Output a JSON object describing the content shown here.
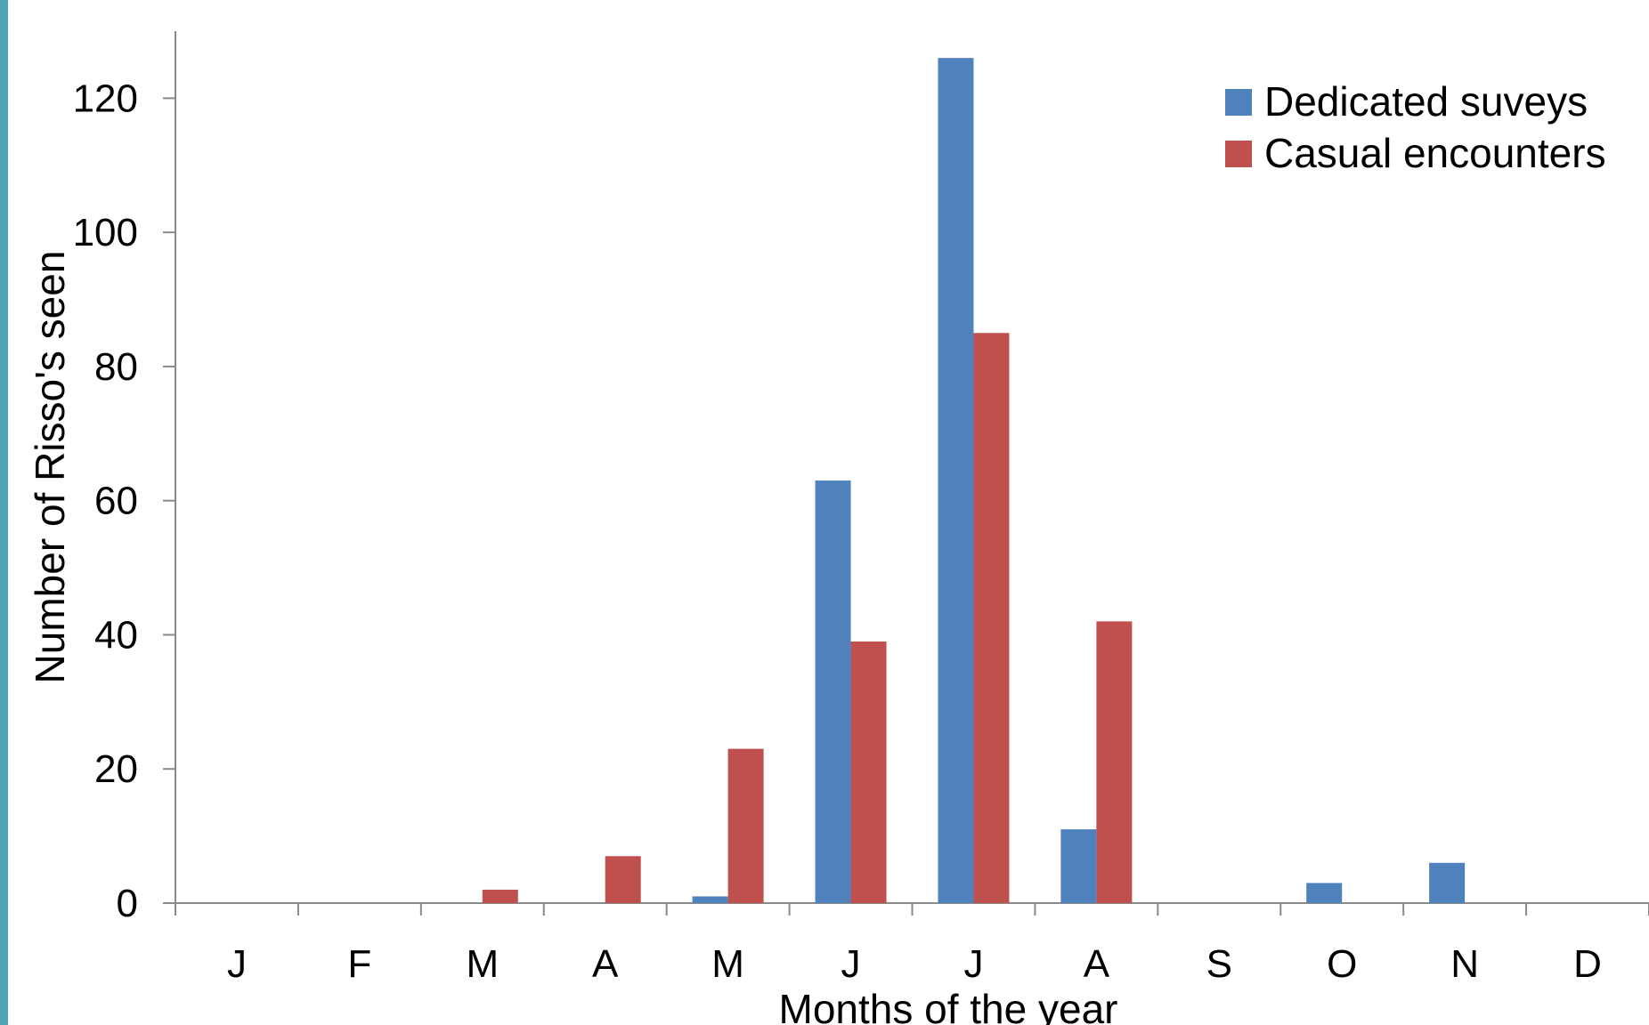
{
  "colors": {
    "page_background": "#ffffff",
    "frame_accent": "#4fa3b3",
    "axis_line": "#8a8a8a"
  },
  "chart_data": {
    "type": "bar",
    "title": "",
    "xlabel": "Months of the year",
    "ylabel": "Number of Risso's seen",
    "categories": [
      "J",
      "F",
      "M",
      "A",
      "M",
      "J",
      "J",
      "A",
      "S",
      "O",
      "N",
      "D"
    ],
    "ylim": [
      0,
      130
    ],
    "yticks": [
      0,
      20,
      40,
      60,
      80,
      100,
      120
    ],
    "grid": false,
    "legend_position": "top-right",
    "series": [
      {
        "name": "Dedicated suveys",
        "color": "#4f81bd",
        "values": [
          0,
          0,
          0,
          0,
          1,
          63,
          126,
          11,
          0,
          3,
          6,
          0
        ]
      },
      {
        "name": "Casual encounters",
        "color": "#c0504d",
        "values": [
          0,
          0,
          2,
          7,
          23,
          39,
          85,
          42,
          0,
          0,
          0,
          0
        ]
      }
    ]
  }
}
